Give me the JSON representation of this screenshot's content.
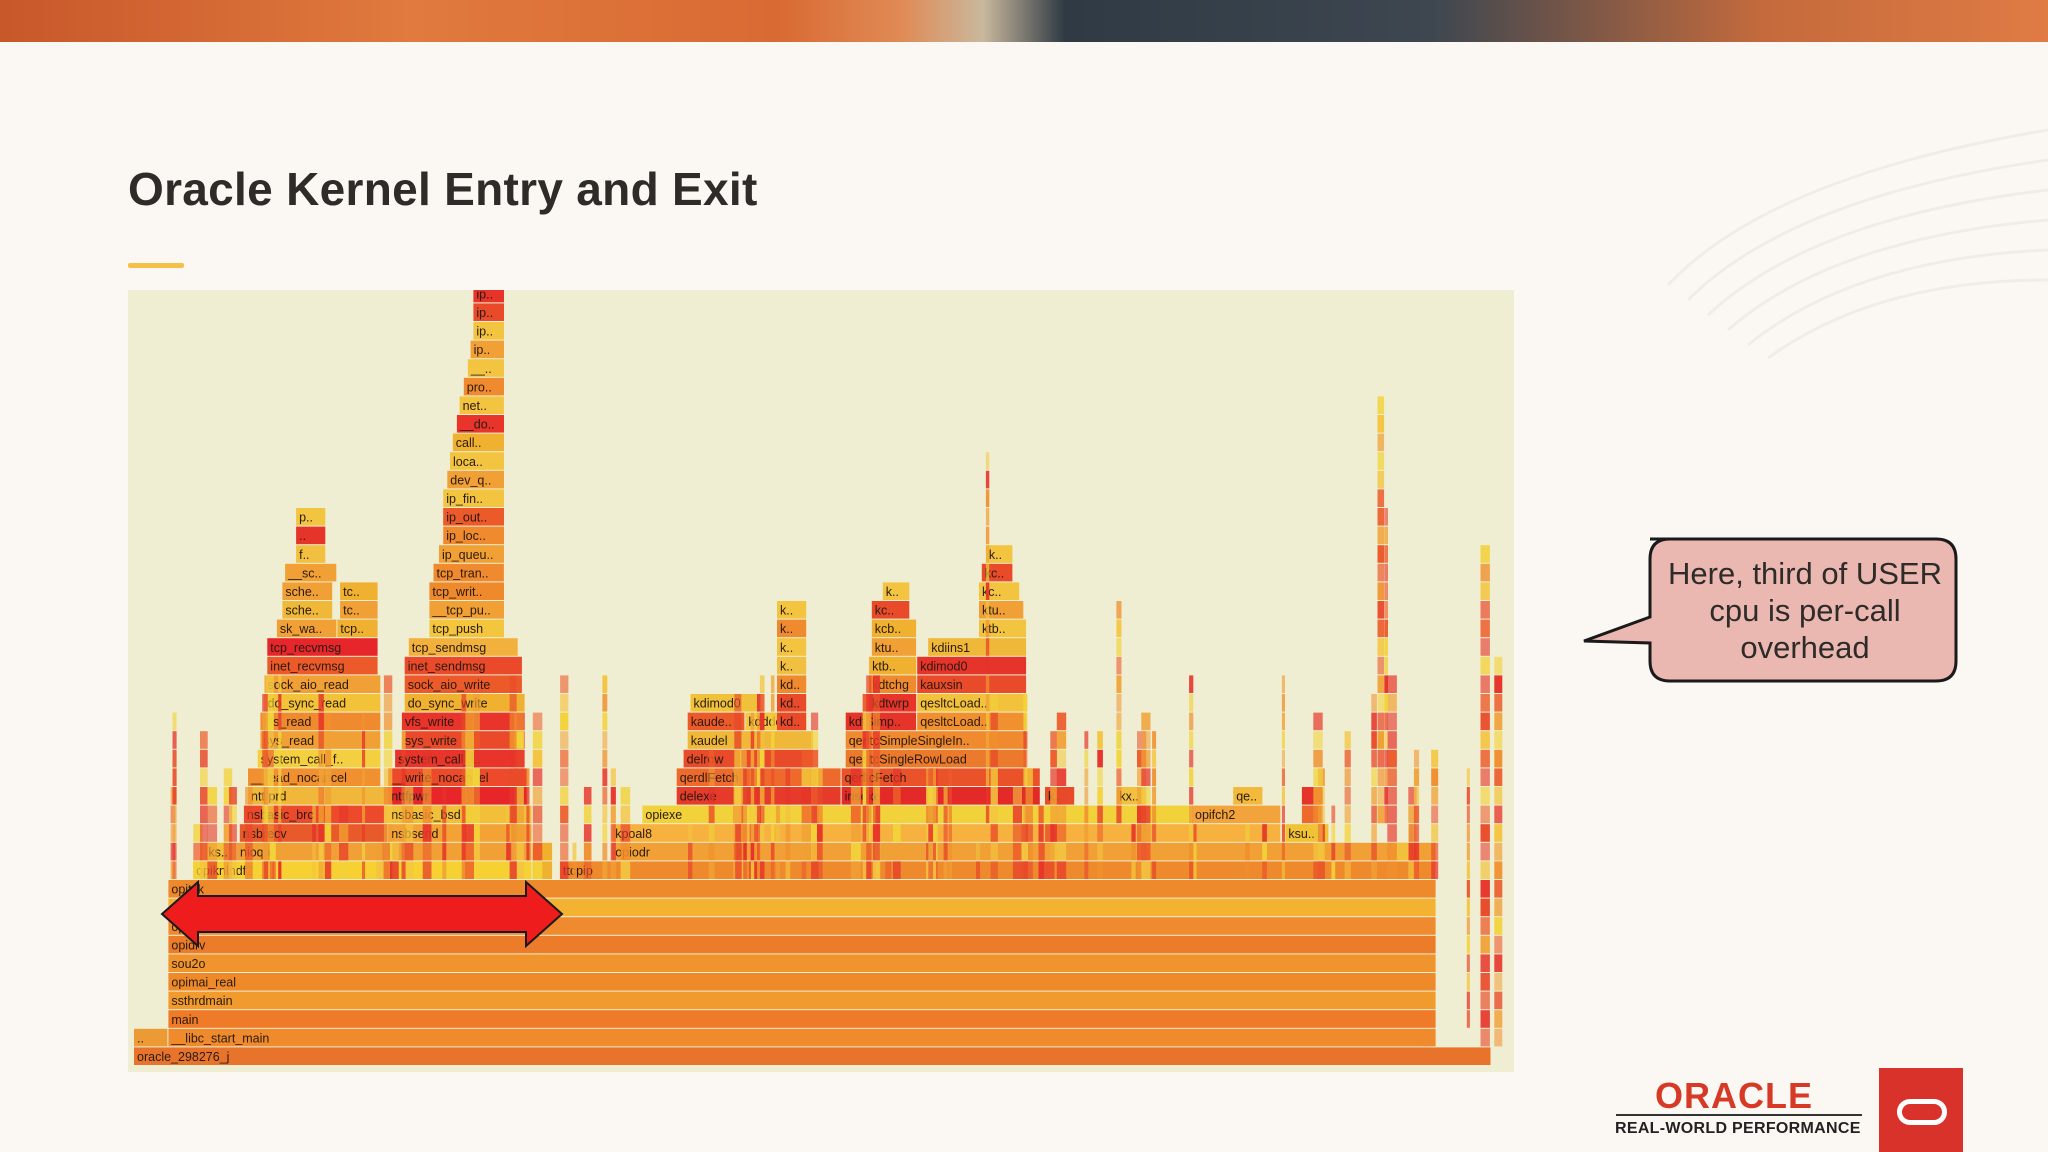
{
  "slide": {
    "title": "Oracle Kernel Entry and Exit",
    "callout": "Here, third of USER cpu is per-call overhead",
    "logo": "ORACLE",
    "tagline": "REAL-WORLD PERFORMANCE"
  },
  "colors": {
    "flame_background": "#f0eed2",
    "accent": "#f5c048",
    "callout_fill": "#eab8b1",
    "arrow": "#ee1c1c",
    "brand_red": "#d9322a"
  },
  "flame_graph": {
    "frames": [
      {
        "label": "oracle_298276_j",
        "row": 0,
        "start": 0.0,
        "end": 0.988,
        "color": "#e8742c"
      },
      {
        "label": "..",
        "row": 1,
        "start": 0.0,
        "end": 0.025,
        "color": "#ec9a34"
      },
      {
        "label": "__libc_start_main",
        "row": 1,
        "start": 0.025,
        "end": 0.948,
        "color": "#f08b2d"
      },
      {
        "label": "main",
        "row": 2,
        "start": 0.025,
        "end": 0.948,
        "color": "#ef7a28"
      },
      {
        "label": "ssthrdmain",
        "row": 3,
        "start": 0.025,
        "end": 0.948,
        "color": "#f19a2d"
      },
      {
        "label": "opimai_real",
        "row": 4,
        "start": 0.025,
        "end": 0.948,
        "color": "#ee8a2a"
      },
      {
        "label": "sou2o",
        "row": 5,
        "start": 0.025,
        "end": 0.948,
        "color": "#f0952d"
      },
      {
        "label": "opidrv",
        "row": 6,
        "start": 0.025,
        "end": 0.948,
        "color": "#ec7b2a"
      },
      {
        "label": "opiodr",
        "row": 7,
        "start": 0.025,
        "end": 0.948,
        "color": "#f08a2f"
      },
      {
        "label": "ttcpip",
        "row": 8,
        "start": 0.025,
        "end": 0.948,
        "color": "#f3b232"
      },
      {
        "label": "opitsk",
        "row": 9,
        "start": 0.025,
        "end": 0.948,
        "color": "#ee8a2c"
      },
      {
        "label": "opiknlndf2",
        "row": 10,
        "start": 0.043,
        "end": 0.29,
        "color": "#f7d132"
      },
      {
        "label": "t..",
        "row": 10,
        "start": 0.29,
        "end": 0.305,
        "color": "#f0b030"
      },
      {
        "label": "ttcpip",
        "row": 10,
        "start": 0.31,
        "end": 0.948,
        "color": "#ef8a2c"
      },
      {
        "label": "ks..",
        "row": 11,
        "start": 0.052,
        "end": 0.075,
        "color": "#f1c03a"
      },
      {
        "label": "nioqrc",
        "row": 11,
        "start": 0.075,
        "end": 0.29,
        "color": "#f0a034"
      },
      {
        "label": "t..",
        "row": 11,
        "start": 0.29,
        "end": 0.305,
        "color": "#f0b02e"
      },
      {
        "label": "opiodr",
        "row": 11,
        "start": 0.348,
        "end": 0.948,
        "color": "#f0a034"
      },
      {
        "label": "t..",
        "row": 11,
        "start": 0.915,
        "end": 0.93,
        "color": "#f2c03c"
      },
      {
        "label": "nsbrecv",
        "row": 12,
        "start": 0.077,
        "end": 0.185,
        "color": "#e85a2a"
      },
      {
        "label": "nsbsend",
        "row": 12,
        "start": 0.185,
        "end": 0.29,
        "color": "#f3a336"
      },
      {
        "label": "kpoal8",
        "row": 12,
        "start": 0.348,
        "end": 0.835,
        "color": "#f6b13e"
      },
      {
        "label": "ksu..",
        "row": 12,
        "start": 0.838,
        "end": 0.87,
        "color": "#f0c234"
      },
      {
        "label": "nsbasic_brc",
        "row": 13,
        "start": 0.08,
        "end": 0.185,
        "color": "#ec4a2a"
      },
      {
        "label": "nsbasic_bsd",
        "row": 13,
        "start": 0.185,
        "end": 0.29,
        "color": "#f2c038"
      },
      {
        "label": "opiexe",
        "row": 13,
        "start": 0.37,
        "end": 0.77,
        "color": "#f2d23a"
      },
      {
        "label": "opifch2",
        "row": 13,
        "start": 0.77,
        "end": 0.835,
        "color": "#f3a33c"
      },
      {
        "label": "k..",
        "row": 13,
        "start": 0.85,
        "end": 0.865,
        "color": "#ee6a2c"
      },
      {
        "label": "nttfprd",
        "row": 14,
        "start": 0.083,
        "end": 0.185,
        "color": "#f0b73b"
      },
      {
        "label": "nttfpwr",
        "row": 14,
        "start": 0.185,
        "end": 0.287,
        "color": "#e8262a"
      },
      {
        "label": "delexe",
        "row": 14,
        "start": 0.395,
        "end": 0.515,
        "color": "#e63a2a"
      },
      {
        "label": "insexe",
        "row": 14,
        "start": 0.515,
        "end": 0.66,
        "color": "#e42a28"
      },
      {
        "label": "k..",
        "row": 14,
        "start": 0.663,
        "end": 0.685,
        "color": "#e84a2a"
      },
      {
        "label": "kx..",
        "row": 14,
        "start": 0.715,
        "end": 0.735,
        "color": "#f2c040"
      },
      {
        "label": "qe..",
        "row": 14,
        "start": 0.8,
        "end": 0.822,
        "color": "#f3b93c"
      },
      {
        "label": "k..",
        "row": 14,
        "start": 0.85,
        "end": 0.865,
        "color": "#e6342a"
      },
      {
        "label": "__read_nocancel",
        "row": 15,
        "start": 0.083,
        "end": 0.18,
        "color": "#f0902e"
      },
      {
        "label": "__write_nocancel",
        "row": 15,
        "start": 0.185,
        "end": 0.287,
        "color": "#ec4a2a"
      },
      {
        "label": "qerdlFetch",
        "row": 15,
        "start": 0.395,
        "end": 0.515,
        "color": "#ee6a2c"
      },
      {
        "label": "qerltcFetch",
        "row": 15,
        "start": 0.515,
        "end": 0.66,
        "color": "#ea522a"
      },
      {
        "label": "system_call_f..",
        "row": 16,
        "start": 0.09,
        "end": 0.18,
        "color": "#f4d040"
      },
      {
        "label": "system_call_f..",
        "row": 16,
        "start": 0.19,
        "end": 0.285,
        "color": "#e8342a"
      },
      {
        "label": "delrow",
        "row": 16,
        "start": 0.4,
        "end": 0.495,
        "color": "#e84a2a"
      },
      {
        "label": "qerltcSingleRowLoad",
        "row": 16,
        "start": 0.518,
        "end": 0.65,
        "color": "#ec7a2c"
      },
      {
        "label": "sys_read",
        "row": 17,
        "start": 0.092,
        "end": 0.18,
        "color": "#f0a034"
      },
      {
        "label": "sys_write",
        "row": 17,
        "start": 0.195,
        "end": 0.285,
        "color": "#ea4a2a"
      },
      {
        "label": "kaudel",
        "row": 17,
        "start": 0.403,
        "end": 0.495,
        "color": "#f0b838"
      },
      {
        "label": "qerltcSimpleSingleIn..",
        "row": 17,
        "start": 0.518,
        "end": 0.65,
        "color": "#f08a2f"
      },
      {
        "label": "vfs_read",
        "row": 18,
        "start": 0.092,
        "end": 0.18,
        "color": "#f08a2f"
      },
      {
        "label": "vfs_write",
        "row": 18,
        "start": 0.195,
        "end": 0.285,
        "color": "#e8342a"
      },
      {
        "label": "kaude..",
        "row": 18,
        "start": 0.403,
        "end": 0.445,
        "color": "#ec5a2a"
      },
      {
        "label": "kdddel",
        "row": 18,
        "start": 0.445,
        "end": 0.49,
        "color": "#f2c840"
      },
      {
        "label": "kd..",
        "row": 18,
        "start": 0.468,
        "end": 0.49,
        "color": "#e84a2a"
      },
      {
        "label": "kdtSimp..",
        "row": 18,
        "start": 0.518,
        "end": 0.57,
        "color": "#e6342a"
      },
      {
        "label": "qesltcLoad..",
        "row": 18,
        "start": 0.57,
        "end": 0.65,
        "color": "#f0902e"
      },
      {
        "label": "do_sync_read",
        "row": 19,
        "start": 0.095,
        "end": 0.18,
        "color": "#f2c238"
      },
      {
        "label": "do_sync_write",
        "row": 19,
        "start": 0.197,
        "end": 0.285,
        "color": "#f0b030"
      },
      {
        "label": "kdimod0",
        "row": 19,
        "start": 0.405,
        "end": 0.455,
        "color": "#f0c23c"
      },
      {
        "label": "kd..",
        "row": 19,
        "start": 0.468,
        "end": 0.49,
        "color": "#e84a2a"
      },
      {
        "label": "kdtwrp",
        "row": 19,
        "start": 0.535,
        "end": 0.57,
        "color": "#e8342a"
      },
      {
        "label": "qesltcLoad..",
        "row": 19,
        "start": 0.57,
        "end": 0.65,
        "color": "#f2c23c"
      },
      {
        "label": "sock_aio_read",
        "row": 20,
        "start": 0.095,
        "end": 0.18,
        "color": "#f0a034"
      },
      {
        "label": "sock_aio_write",
        "row": 20,
        "start": 0.197,
        "end": 0.283,
        "color": "#ec5a2a"
      },
      {
        "label": "kd..",
        "row": 20,
        "start": 0.468,
        "end": 0.49,
        "color": "#f08a2f"
      },
      {
        "label": "kdtchg",
        "row": 20,
        "start": 0.535,
        "end": 0.57,
        "color": "#f08a2f"
      },
      {
        "label": "kauxsin",
        "row": 20,
        "start": 0.57,
        "end": 0.65,
        "color": "#e84a2a"
      },
      {
        "label": "inet_recvmsg",
        "row": 21,
        "start": 0.097,
        "end": 0.178,
        "color": "#ec5a2a"
      },
      {
        "label": "inet_sendmsg",
        "row": 21,
        "start": 0.197,
        "end": 0.283,
        "color": "#ea4a2a"
      },
      {
        "label": "k..",
        "row": 21,
        "start": 0.468,
        "end": 0.49,
        "color": "#f2c040"
      },
      {
        "label": "ktb..",
        "row": 21,
        "start": 0.535,
        "end": 0.57,
        "color": "#f0b030"
      },
      {
        "label": "kdimod0",
        "row": 21,
        "start": 0.57,
        "end": 0.65,
        "color": "#e6342a"
      },
      {
        "label": "tcp_recvmsg",
        "row": 22,
        "start": 0.097,
        "end": 0.178,
        "color": "#e6262a"
      },
      {
        "label": "tcp_sendmsg",
        "row": 22,
        "start": 0.2,
        "end": 0.28,
        "color": "#f2b03c"
      },
      {
        "label": "k..",
        "row": 22,
        "start": 0.468,
        "end": 0.49,
        "color": "#f3c440"
      },
      {
        "label": "ktu..",
        "row": 22,
        "start": 0.537,
        "end": 0.57,
        "color": "#f0a034"
      },
      {
        "label": "kdiins1",
        "row": 22,
        "start": 0.578,
        "end": 0.65,
        "color": "#f0b838"
      },
      {
        "label": "sk_wa..",
        "row": 23,
        "start": 0.104,
        "end": 0.148,
        "color": "#f0a034"
      },
      {
        "label": "tcp..",
        "row": 23,
        "start": 0.148,
        "end": 0.178,
        "color": "#f0b030"
      },
      {
        "label": "tcp_push",
        "row": 23,
        "start": 0.215,
        "end": 0.27,
        "color": "#f3c63e"
      },
      {
        "label": "k..",
        "row": 23,
        "start": 0.468,
        "end": 0.49,
        "color": "#f08a2f"
      },
      {
        "label": "kcb..",
        "row": 23,
        "start": 0.537,
        "end": 0.57,
        "color": "#f0b030"
      },
      {
        "label": "ktb..",
        "row": 23,
        "start": 0.615,
        "end": 0.65,
        "color": "#f3c440"
      },
      {
        "label": "sche..",
        "row": 24,
        "start": 0.108,
        "end": 0.145,
        "color": "#f0b838"
      },
      {
        "label": "tc..",
        "row": 24,
        "start": 0.15,
        "end": 0.178,
        "color": "#f0a034"
      },
      {
        "label": "__tcp_pu..",
        "row": 24,
        "start": 0.215,
        "end": 0.27,
        "color": "#f0a034"
      },
      {
        "label": "k..",
        "row": 24,
        "start": 0.468,
        "end": 0.49,
        "color": "#f3c440"
      },
      {
        "label": "kc..",
        "row": 24,
        "start": 0.537,
        "end": 0.565,
        "color": "#e84a2a"
      },
      {
        "label": "ktu..",
        "row": 24,
        "start": 0.615,
        "end": 0.648,
        "color": "#f0a034"
      },
      {
        "label": "sche..",
        "row": 25,
        "start": 0.108,
        "end": 0.145,
        "color": "#f0a034"
      },
      {
        "label": "tc..",
        "row": 25,
        "start": 0.15,
        "end": 0.178,
        "color": "#f0b030"
      },
      {
        "label": "tcp_writ..",
        "row": 25,
        "start": 0.215,
        "end": 0.27,
        "color": "#ee8a2c"
      },
      {
        "label": "k..",
        "row": 25,
        "start": 0.545,
        "end": 0.565,
        "color": "#f3c440"
      },
      {
        "label": "kc..",
        "row": 25,
        "start": 0.615,
        "end": 0.645,
        "color": "#f3c440"
      },
      {
        "label": "__sc..",
        "row": 26,
        "start": 0.11,
        "end": 0.148,
        "color": "#f0a034"
      },
      {
        "label": "tcp_tran..",
        "row": 26,
        "start": 0.218,
        "end": 0.27,
        "color": "#f08a2f"
      },
      {
        "label": "kc..",
        "row": 26,
        "start": 0.617,
        "end": 0.64,
        "color": "#e84a2a"
      },
      {
        "label": "f..",
        "row": 27,
        "start": 0.118,
        "end": 0.14,
        "color": "#f2c040"
      },
      {
        "label": "ip_queu..",
        "row": 27,
        "start": 0.222,
        "end": 0.27,
        "color": "#f0a034"
      },
      {
        "label": "k..",
        "row": 27,
        "start": 0.62,
        "end": 0.64,
        "color": "#f3c440"
      },
      {
        "label": "..",
        "row": 28,
        "start": 0.118,
        "end": 0.14,
        "color": "#e6342a"
      },
      {
        "label": "ip_loc..",
        "row": 28,
        "start": 0.225,
        "end": 0.27,
        "color": "#f08a2f"
      },
      {
        "label": "p..",
        "row": 29,
        "start": 0.118,
        "end": 0.14,
        "color": "#f3c440"
      },
      {
        "label": "ip_out..",
        "row": 29,
        "start": 0.225,
        "end": 0.27,
        "color": "#ec5a2a"
      },
      {
        "label": "ip_fin..",
        "row": 30,
        "start": 0.225,
        "end": 0.27,
        "color": "#f3c440"
      },
      {
        "label": "dev_qu..",
        "row": 31,
        "start": 0.228,
        "end": 0.27,
        "color": "#f0a034"
      },
      {
        "label": "loca..",
        "row": 32,
        "start": 0.23,
        "end": 0.27,
        "color": "#f3c440"
      },
      {
        "label": "call..",
        "row": 33,
        "start": 0.232,
        "end": 0.27,
        "color": "#f0b030"
      },
      {
        "label": "__do..",
        "row": 34,
        "start": 0.235,
        "end": 0.27,
        "color": "#e8342a"
      },
      {
        "label": "net..",
        "row": 35,
        "start": 0.237,
        "end": 0.27,
        "color": "#f3c440"
      },
      {
        "label": "pro..",
        "row": 36,
        "start": 0.24,
        "end": 0.27,
        "color": "#f08a2f"
      },
      {
        "label": "__n..",
        "row": 37,
        "start": 0.243,
        "end": 0.27,
        "color": "#f3c440"
      },
      {
        "label": "ip..",
        "row": 38,
        "start": 0.245,
        "end": 0.27,
        "color": "#f0a034"
      },
      {
        "label": "ip..",
        "row": 39,
        "start": 0.247,
        "end": 0.27,
        "color": "#f3c440"
      },
      {
        "label": "ip..",
        "row": 40,
        "start": 0.247,
        "end": 0.27,
        "color": "#e84a2a"
      },
      {
        "label": "ip..",
        "row": 41,
        "start": 0.247,
        "end": 0.27,
        "color": "#e6342a"
      }
    ]
  }
}
